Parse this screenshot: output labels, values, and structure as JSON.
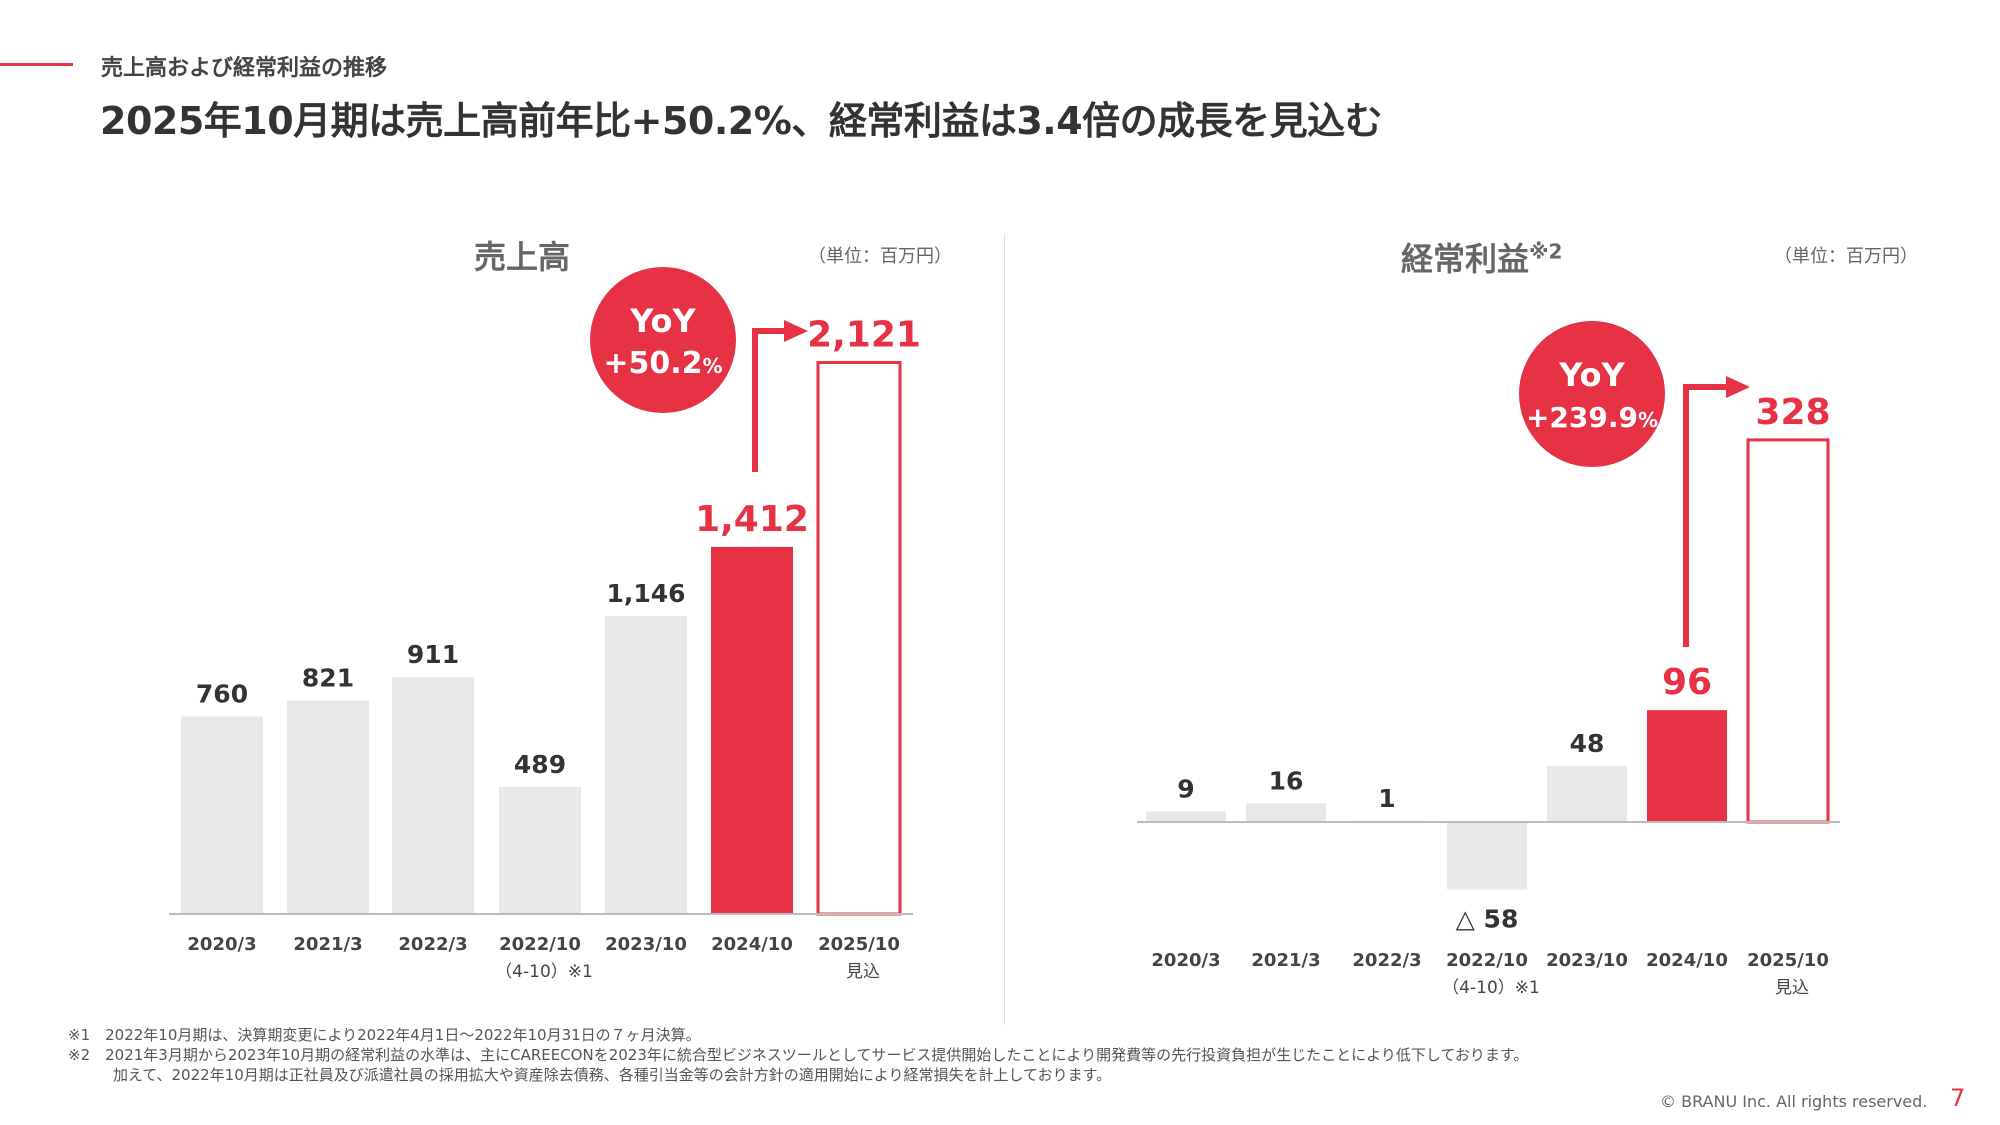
{
  "header": {
    "section": "売上高および経常利益の推移",
    "title": "2025年10月期は売上高前年比+50.2%、経常利益は3.4倍の成長を見込む"
  },
  "colors": {
    "accent": "#e63244",
    "bar": "#e8e8e8",
    "axis": "#bbbbbb"
  },
  "chart_data": [
    {
      "type": "bar",
      "title": "売上高",
      "unit": "（単位：百万円）",
      "categories": [
        "2020/3",
        "2021/3",
        "2022/3",
        "2022/10",
        "2023/10",
        "2024/10",
        "2025/10"
      ],
      "category_sub": [
        "",
        "",
        "",
        "（4-10）※1",
        "",
        "",
        "見込"
      ],
      "values": [
        760,
        821,
        911,
        489,
        1146,
        1412,
        2121
      ],
      "labels": [
        "760",
        "821",
        "911",
        "489",
        "1,146",
        "1,412",
        "2,121"
      ],
      "styles": [
        "gray",
        "gray",
        "gray",
        "gray",
        "gray",
        "red",
        "outline"
      ],
      "yoy": {
        "line1": "YoY",
        "line2": "+50.2",
        "suffix": "%"
      }
    },
    {
      "type": "bar",
      "title": "経常利益",
      "title_note": "※2",
      "unit": "（単位：百万円）",
      "categories": [
        "2020/3",
        "2021/3",
        "2022/3",
        "2022/10",
        "2023/10",
        "2024/10",
        "2025/10"
      ],
      "category_sub": [
        "",
        "",
        "",
        "（4-10）※1",
        "",
        "",
        "見込"
      ],
      "values": [
        9,
        16,
        1,
        -58,
        48,
        96,
        328
      ],
      "labels": [
        "9",
        "16",
        "1",
        "△ 58",
        "48",
        "96",
        "328"
      ],
      "styles": [
        "gray",
        "gray",
        "gray",
        "gray",
        "gray",
        "red",
        "outline"
      ],
      "yoy": {
        "line1": "YoY",
        "line2": "+239.9",
        "suffix": "%"
      }
    }
  ],
  "footnotes": [
    "※1　2022年10月期は、決算期変更により2022年4月1日～2022年10月31日の７ヶ月決算。",
    "※2　2021年3月期から2023年10月期の経常利益の水準は、主にCAREECONを2023年に統合型ビジネスツールとしてサービス提供開始したことにより開発費等の先行投資負担が生じたことにより低下しております。",
    "　　　加えて、2022年10月期は正社員及び派遣社員の採用拡大や資産除去債務、各種引当金等の会計方針の適用開始により経常損失を計上しております。"
  ],
  "footer": {
    "copyright": "© BRANU Inc. All rights reserved.",
    "page": "7"
  }
}
